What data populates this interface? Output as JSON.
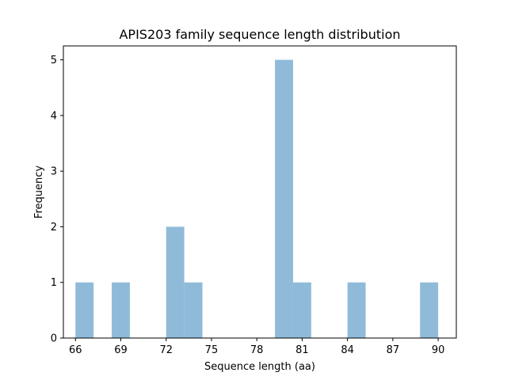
{
  "chart_data": {
    "type": "bar",
    "title": "APIS203 family sequence length distribution",
    "xlabel": "Sequence length (aa)",
    "ylabel": "Frequency",
    "xlim": [
      65.2,
      91.2
    ],
    "ylim": [
      0,
      5.25
    ],
    "xticks": [
      "66",
      "69",
      "72",
      "75",
      "78",
      "81",
      "84",
      "87",
      "90"
    ],
    "yticks": [
      "0",
      "1",
      "2",
      "3",
      "4",
      "5"
    ],
    "bar_color": "#8fbbd9",
    "bin_width": 1.2,
    "bins": [
      {
        "start": 66.0,
        "end": 67.2,
        "count": 1
      },
      {
        "start": 67.2,
        "end": 68.4,
        "count": 0
      },
      {
        "start": 68.4,
        "end": 69.6,
        "count": 1
      },
      {
        "start": 69.6,
        "end": 70.8,
        "count": 0
      },
      {
        "start": 70.8,
        "end": 72.0,
        "count": 0
      },
      {
        "start": 72.0,
        "end": 73.2,
        "count": 2
      },
      {
        "start": 73.2,
        "end": 74.4,
        "count": 1
      },
      {
        "start": 74.4,
        "end": 75.6,
        "count": 0
      },
      {
        "start": 75.6,
        "end": 76.8,
        "count": 0
      },
      {
        "start": 76.8,
        "end": 78.0,
        "count": 0
      },
      {
        "start": 78.0,
        "end": 79.2,
        "count": 0
      },
      {
        "start": 79.2,
        "end": 80.4,
        "count": 5
      },
      {
        "start": 80.4,
        "end": 81.6,
        "count": 1
      },
      {
        "start": 81.6,
        "end": 82.8,
        "count": 0
      },
      {
        "start": 82.8,
        "end": 84.0,
        "count": 0
      },
      {
        "start": 84.0,
        "end": 85.2,
        "count": 1
      },
      {
        "start": 85.2,
        "end": 86.4,
        "count": 0
      },
      {
        "start": 86.4,
        "end": 87.6,
        "count": 0
      },
      {
        "start": 87.6,
        "end": 88.8,
        "count": 0
      },
      {
        "start": 88.8,
        "end": 90.0,
        "count": 1
      }
    ]
  }
}
